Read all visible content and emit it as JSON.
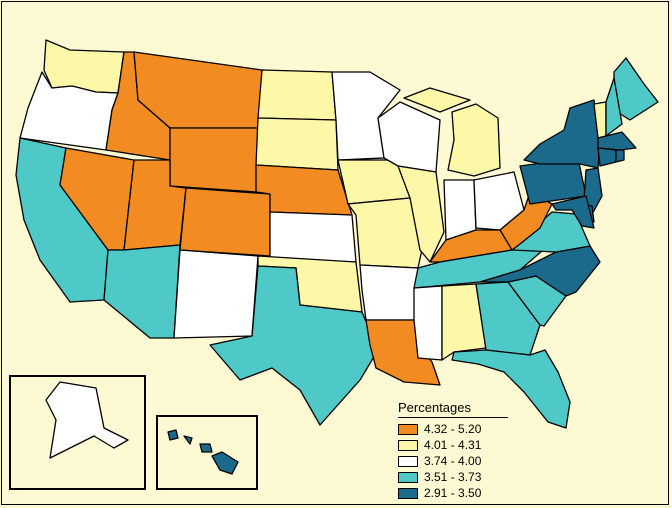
{
  "map": {
    "legend": {
      "title": "Percentages",
      "items": [
        {
          "label": "4.32 - 5.20",
          "color": "#f28b22"
        },
        {
          "label": "4.01 - 4.31",
          "color": "#fdf7a8"
        },
        {
          "label": "3.74 - 4.00",
          "color": "#ffffff"
        },
        {
          "label": "3.51 - 3.73",
          "color": "#4ec9c7"
        },
        {
          "label": "2.91 - 3.50",
          "color": "#1b6a8c"
        }
      ]
    },
    "state_classes": {
      "WA": 1,
      "OR": 2,
      "CA": 3,
      "ID": 0,
      "NV": 0,
      "MT": 0,
      "WY": 0,
      "UT": 0,
      "AZ": 3,
      "CO": 0,
      "NM": 2,
      "ND": 1,
      "SD": 1,
      "NE": 0,
      "KS": 2,
      "OK": 1,
      "TX": 3,
      "MN": 2,
      "IA": 1,
      "MO": 1,
      "AR": 2,
      "LA": 0,
      "WI": 2,
      "IL": 1,
      "MI": 1,
      "IN": 2,
      "OH": 2,
      "KY": 0,
      "TN": 3,
      "MS": 2,
      "AL": 1,
      "GA": 3,
      "FL": 3,
      "SC": 3,
      "NC": 4,
      "VA": 3,
      "WV": 0,
      "PA": 4,
      "NY": 4,
      "ME": 3,
      "VT": 1,
      "NH": 3,
      "MA": 4,
      "CT": 4,
      "RI": 4,
      "NJ": 4,
      "DE": 4,
      "MD": 4,
      "AK": 2,
      "HI": 4
    }
  }
}
